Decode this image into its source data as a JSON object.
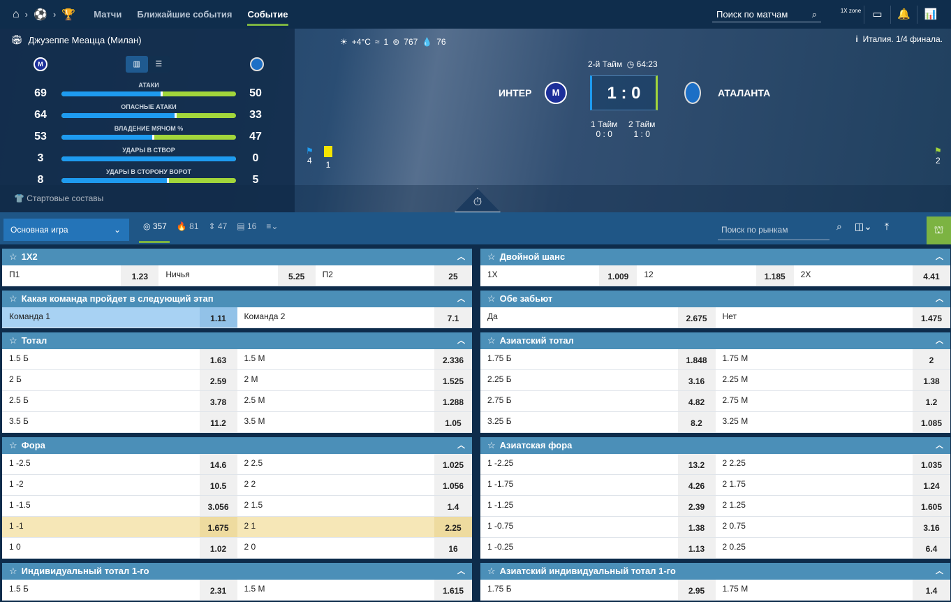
{
  "nav": {
    "links": [
      "Матчи",
      "Ближайшие события",
      "Событие"
    ],
    "active": 2,
    "search_placeholder": "Поиск по матчам",
    "zone_label": "1X zone"
  },
  "hero": {
    "stadium": "Джузеппе Меацца (Милан)",
    "tournament": "Италия. 1/4 финала.",
    "stats": [
      {
        "label": "АТАКИ",
        "home": 69,
        "away": 50
      },
      {
        "label": "ОПАСНЫЕ АТАКИ",
        "home": 64,
        "away": 33
      },
      {
        "label": "ВЛАДЕНИЕ МЯЧОМ %",
        "home": 53,
        "away": 47
      },
      {
        "label": "УДАРЫ В СТВОР",
        "home": 3,
        "away": 0
      },
      {
        "label": "УДАРЫ В СТОРОНУ ВОРОТ",
        "home": 8,
        "away": 5
      }
    ],
    "lineups": "Стартовые составы",
    "period": "2-й Тайм",
    "time": "64:23",
    "home": "ИНТЕР",
    "away": "АТАЛАНТА",
    "score": "1 : 0",
    "halves": [
      {
        "label": "1 Тайм",
        "score": "0 : 0"
      },
      {
        "label": "2 Тайм",
        "score": "1 : 0"
      }
    ],
    "home_corners": "4",
    "home_yellow": "1",
    "away_corners": "2",
    "weather": {
      "temp": "+4°C",
      "wind": "1",
      "pressure": "767",
      "humidity": "76"
    },
    "colors": {
      "home": "#1e9bf0",
      "away": "#a2d63b"
    }
  },
  "toolbar": {
    "group": "Основная игра",
    "tabs": [
      {
        "icon": "target-icon",
        "count": "357"
      },
      {
        "icon": "fire-icon",
        "count": "81"
      },
      {
        "icon": "updown-icon",
        "count": "47"
      },
      {
        "icon": "stats-icon",
        "count": "16"
      }
    ],
    "search_placeholder": "Поиск по рынкам"
  },
  "markets": {
    "left": [
      {
        "title": "1X2",
        "rows": [
          [
            [
              "П1",
              "1.23"
            ],
            [
              "Ничья",
              "5.25"
            ],
            [
              "П2",
              "25"
            ]
          ]
        ]
      },
      {
        "title": "Какая команда пройдет в следующий этап",
        "rows": [
          [
            [
              "Команда 1",
              "1.11",
              "b"
            ],
            [
              "Команда 2",
              "7.1"
            ]
          ]
        ]
      },
      {
        "title": "Тотал",
        "rows": [
          [
            [
              "1.5 Б",
              "1.63"
            ],
            [
              "1.5 М",
              "2.336"
            ]
          ],
          [
            [
              "2 Б",
              "2.59"
            ],
            [
              "2 М",
              "1.525"
            ]
          ],
          [
            [
              "2.5 Б",
              "3.78"
            ],
            [
              "2.5 М",
              "1.288"
            ]
          ],
          [
            [
              "3.5 Б",
              "11.2"
            ],
            [
              "3.5 М",
              "1.05"
            ]
          ]
        ]
      },
      {
        "title": "Фора",
        "rows": [
          [
            [
              "1 -2.5",
              "14.6"
            ],
            [
              "2 2.5",
              "1.025"
            ]
          ],
          [
            [
              "1 -2",
              "10.5"
            ],
            [
              "2 2",
              "1.056"
            ]
          ],
          [
            [
              "1 -1.5",
              "3.056"
            ],
            [
              "2 1.5",
              "1.4"
            ]
          ],
          [
            [
              "1 -1",
              "1.675",
              "y"
            ],
            [
              "2 1",
              "2.25",
              "y"
            ]
          ],
          [
            [
              "1 0",
              "1.02"
            ],
            [
              "2 0",
              "16"
            ]
          ]
        ]
      },
      {
        "title": "Индивидуальный тотал 1-го",
        "rows": [
          [
            [
              "1.5 Б",
              "2.31"
            ],
            [
              "1.5 М",
              "1.615"
            ]
          ]
        ]
      }
    ],
    "right": [
      {
        "title": "Двойной шанс",
        "rows": [
          [
            [
              "1X",
              "1.009"
            ],
            [
              "12",
              "1.185"
            ],
            [
              "2X",
              "4.41"
            ]
          ]
        ]
      },
      {
        "title": "Обе забьют",
        "rows": [
          [
            [
              "Да",
              "2.675"
            ],
            [
              "Нет",
              "1.475"
            ]
          ]
        ]
      },
      {
        "title": "Азиатский тотал",
        "rows": [
          [
            [
              "1.75 Б",
              "1.848"
            ],
            [
              "1.75 М",
              "2"
            ]
          ],
          [
            [
              "2.25 Б",
              "3.16"
            ],
            [
              "2.25 М",
              "1.38"
            ]
          ],
          [
            [
              "2.75 Б",
              "4.82"
            ],
            [
              "2.75 М",
              "1.2"
            ]
          ],
          [
            [
              "3.25 Б",
              "8.2"
            ],
            [
              "3.25 М",
              "1.085"
            ]
          ]
        ]
      },
      {
        "title": "Азиатская фора",
        "rows": [
          [
            [
              "1 -2.25",
              "13.2"
            ],
            [
              "2 2.25",
              "1.035"
            ]
          ],
          [
            [
              "1 -1.75",
              "4.26"
            ],
            [
              "2 1.75",
              "1.24"
            ]
          ],
          [
            [
              "1 -1.25",
              "2.39"
            ],
            [
              "2 1.25",
              "1.605"
            ]
          ],
          [
            [
              "1 -0.75",
              "1.38"
            ],
            [
              "2 0.75",
              "3.16"
            ]
          ],
          [
            [
              "1 -0.25",
              "1.13"
            ],
            [
              "2 0.25",
              "6.4"
            ]
          ]
        ]
      },
      {
        "title": "Азиатский индивидуальный тотал 1-го",
        "rows": [
          [
            [
              "1.75 Б",
              "2.95"
            ],
            [
              "1.75 М",
              "1.4"
            ]
          ]
        ]
      }
    ]
  }
}
